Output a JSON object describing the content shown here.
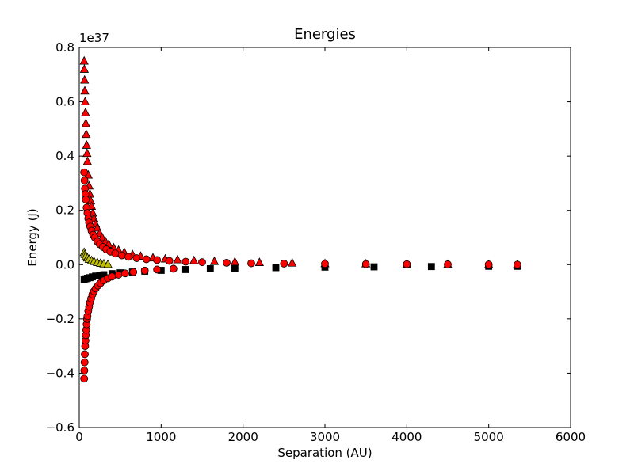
{
  "chart_data": {
    "type": "scatter",
    "title": "Energies",
    "xlabel": "Separation (AU)",
    "ylabel": "Energy (J)",
    "y_multiplier_label": "1e37",
    "xlim": [
      0,
      6000
    ],
    "ylim": [
      -0.6,
      0.8
    ],
    "x_ticks": [
      "0",
      "1000",
      "2000",
      "3000",
      "4000",
      "5000",
      "6000"
    ],
    "y_ticks": [
      "−0.6",
      "−0.4",
      "−0.2",
      "0.0",
      "0.2",
      "0.4",
      "0.6",
      "0.8"
    ],
    "x_tick_values": [
      0,
      1000,
      2000,
      3000,
      4000,
      5000,
      6000
    ],
    "y_tick_values": [
      -0.6,
      -0.4,
      -0.2,
      0.0,
      0.2,
      0.4,
      0.6,
      0.8
    ],
    "grid": false,
    "colors": {
      "red": "#ff0000",
      "yellow": "#bfbf00",
      "black": "#000000"
    },
    "series": [
      {
        "marker": "square",
        "color": "#000000",
        "x": [
          60,
          80,
          100,
          130,
          160,
          200,
          250,
          300,
          400,
          500,
          650,
          800,
          1000,
          1300,
          1600,
          1900,
          2400,
          3000,
          3600,
          4300,
          5000,
          5350
        ],
        "y": [
          -0.055,
          -0.052,
          -0.05,
          -0.048,
          -0.045,
          -0.042,
          -0.04,
          -0.037,
          -0.033,
          -0.03,
          -0.027,
          -0.024,
          -0.021,
          -0.018,
          -0.015,
          -0.013,
          -0.011,
          -0.009,
          -0.008,
          -0.007,
          -0.006,
          -0.006
        ]
      },
      {
        "marker": "triangle",
        "color": "#bfbf00",
        "x": [
          60,
          70,
          80,
          100,
          120,
          150,
          180,
          220,
          260,
          300,
          350
        ],
        "y": [
          0.045,
          0.038,
          0.032,
          0.025,
          0.02,
          0.015,
          0.012,
          0.008,
          0.005,
          0.003,
          0.001
        ]
      },
      {
        "marker": "triangle",
        "color": "#ff0000",
        "x": [
          60,
          62,
          65,
          68,
          72,
          76,
          80,
          85,
          90,
          95,
          100,
          110,
          120,
          130,
          140,
          150,
          165,
          180,
          200,
          220,
          250,
          280,
          320,
          360,
          420,
          480,
          550,
          650,
          750,
          900,
          1050,
          1200,
          1400,
          1650,
          1900,
          2200,
          2600,
          3000,
          3500,
          4000,
          4500,
          5000,
          5350
        ],
        "y": [
          0.75,
          0.72,
          0.68,
          0.64,
          0.6,
          0.56,
          0.52,
          0.48,
          0.44,
          0.41,
          0.38,
          0.33,
          0.29,
          0.26,
          0.235,
          0.215,
          0.19,
          0.17,
          0.15,
          0.135,
          0.115,
          0.1,
          0.085,
          0.075,
          0.062,
          0.053,
          0.045,
          0.037,
          0.031,
          0.025,
          0.021,
          0.018,
          0.015,
          0.012,
          0.01,
          0.008,
          0.006,
          0.004,
          0.003,
          0.002,
          0.001,
          0.0005,
          0.0
        ]
      },
      {
        "marker": "circle",
        "color": "#ff0000",
        "x": [
          60,
          65,
          70,
          75,
          80,
          90,
          100,
          110,
          120,
          135,
          150,
          170,
          190,
          220,
          250,
          290,
          330,
          380,
          440,
          520,
          600,
          700,
          820,
          950,
          1100,
          1300,
          1500,
          1800,
          2100,
          2500,
          3000,
          3500,
          4000,
          4500,
          5000,
          5350
        ],
        "y": [
          0.34,
          0.31,
          0.28,
          0.26,
          0.24,
          0.21,
          0.19,
          0.17,
          0.155,
          0.14,
          0.125,
          0.11,
          0.1,
          0.085,
          0.075,
          0.065,
          0.056,
          0.048,
          0.041,
          0.034,
          0.029,
          0.024,
          0.02,
          0.017,
          0.014,
          0.011,
          0.009,
          0.007,
          0.005,
          0.004,
          0.003,
          0.002,
          0.0015,
          0.001,
          0.0005,
          0.0
        ]
      },
      {
        "marker": "circle",
        "color": "#ff0000",
        "x": [
          60,
          62,
          65,
          68,
          72,
          76,
          80,
          85,
          90,
          95,
          100,
          110,
          120,
          130,
          145,
          160,
          180,
          200,
          230,
          260,
          300,
          350,
          400,
          480,
          560,
          660,
          800,
          950,
          1150
        ],
        "y": [
          -0.42,
          -0.39,
          -0.36,
          -0.33,
          -0.3,
          -0.28,
          -0.26,
          -0.24,
          -0.22,
          -0.2,
          -0.19,
          -0.17,
          -0.155,
          -0.14,
          -0.125,
          -0.11,
          -0.098,
          -0.088,
          -0.077,
          -0.068,
          -0.058,
          -0.05,
          -0.044,
          -0.037,
          -0.032,
          -0.027,
          -0.022,
          -0.018,
          -0.015
        ]
      }
    ]
  }
}
